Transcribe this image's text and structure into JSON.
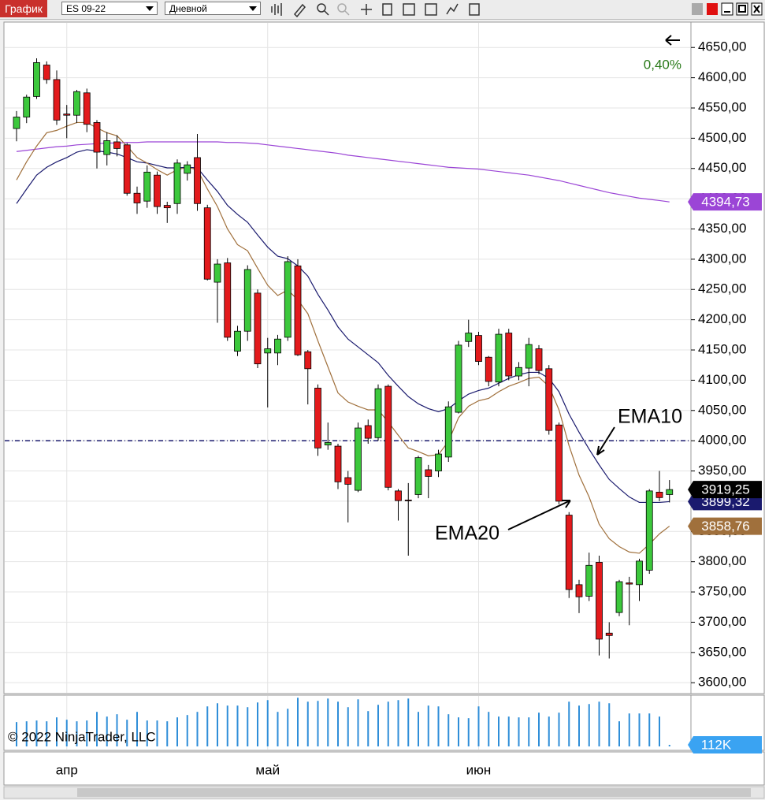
{
  "toolbar": {
    "tab": "График",
    "instrument": "ES 09-22",
    "period": "Дневной"
  },
  "copyright": "© 2022 NinjaTrader, LLC",
  "chart_data": [
    {
      "type": "candlestick",
      "categories": [
        null,
        null,
        null,
        null,
        null,
        null,
        null,
        null,
        null,
        null,
        null,
        null,
        null,
        null,
        null,
        null,
        null,
        null,
        null,
        null,
        null,
        null,
        null,
        null,
        null,
        null,
        null,
        null,
        null,
        null,
        null,
        null,
        null,
        null,
        null,
        null,
        null,
        null,
        null,
        null,
        null,
        null,
        null,
        null,
        null,
        null,
        null,
        null,
        null,
        null,
        null,
        null,
        null,
        null,
        null,
        null,
        null,
        null,
        null,
        null,
        null,
        null,
        null,
        null,
        null,
        null
      ],
      "open": [
        4516,
        4535,
        4569,
        4621,
        4597,
        4540,
        4538,
        4575,
        4526,
        4473,
        4494,
        4489,
        4409,
        4396,
        4439,
        4389,
        4392,
        4442,
        4468,
        4385,
        4262,
        4294,
        4148,
        4181,
        4244,
        4145,
        4145,
        4171,
        4289,
        4147,
        4087,
        3993,
        3991,
        3939,
        3918,
        4025,
        4005,
        4090,
        3917,
        3902,
        3911,
        3952,
        3950,
        3973,
        4047,
        4164,
        4174,
        4138,
        4097,
        4178,
        4107,
        4120,
        4152,
        4119,
        4026,
        3877,
        3762,
        3743,
        3799,
        3682,
        3716,
        3765,
        3762,
        3786,
        3915,
        3911
      ],
      "high": [
        4545,
        4572,
        4632,
        4627,
        4612,
        4555,
        4580,
        4582,
        4530,
        4510,
        4505,
        4492,
        4420,
        4455,
        4445,
        4395,
        4465,
        4462,
        4507,
        4390,
        4300,
        4302,
        4190,
        4290,
        4250,
        4170,
        4175,
        4305,
        4300,
        4150,
        4093,
        4030,
        3995,
        3950,
        4030,
        4035,
        4093,
        4093,
        3920,
        3930,
        3975,
        3960,
        3985,
        4065,
        4165,
        4200,
        4180,
        4140,
        4185,
        4185,
        4130,
        4170,
        4158,
        4125,
        4030,
        3882,
        3770,
        3815,
        3810,
        3700,
        3770,
        3775,
        3805,
        3920,
        3950,
        3935
      ],
      "low": [
        4495,
        4525,
        4565,
        4590,
        4522,
        4500,
        4525,
        4510,
        4450,
        4455,
        4470,
        4405,
        4375,
        4385,
        4375,
        4360,
        4375,
        4430,
        4380,
        4265,
        4195,
        4165,
        4140,
        4165,
        4120,
        4055,
        4125,
        4165,
        4140,
        4060,
        3975,
        3985,
        3920,
        3865,
        3915,
        3995,
        4000,
        3918,
        3868,
        3810,
        3905,
        3905,
        3940,
        3965,
        4045,
        4155,
        4125,
        4090,
        4090,
        4100,
        4100,
        4090,
        4110,
        4010,
        3895,
        3740,
        3715,
        3735,
        3645,
        3640,
        3710,
        3695,
        3735,
        3780,
        3900,
        3898
      ],
      "close": [
        4535,
        4568,
        4625,
        4597,
        4530,
        4538,
        4577,
        4523,
        4477,
        4496,
        4483,
        4409,
        4393,
        4444,
        4387,
        4385,
        4459,
        4456,
        4392,
        4267,
        4292,
        4171,
        4181,
        4283,
        4127,
        4152,
        4168,
        4296,
        4142,
        4119,
        3988,
        3997,
        3932,
        3928,
        4021,
        4004,
        4086,
        3923,
        3901,
        3901,
        3972,
        3941,
        3978,
        4056,
        4158,
        4178,
        4131,
        4098,
        4176,
        4107,
        4121,
        4159,
        4116,
        4017,
        3900,
        3754,
        3742,
        3794,
        3672,
        3678,
        3767,
        3763,
        3801,
        3917,
        3906,
        3919.25
      ],
      "last_label": "3919,25",
      "up_color": "#3cc83c",
      "down_color": "#e31a1c",
      "series": [
        {
          "color": "#9b45d6",
          "last_label": "4394,73",
          "values": [
            4478,
            4480,
            4482,
            4484,
            4486,
            4487,
            4489,
            4490,
            4491,
            4492,
            4492,
            4493,
            4493,
            4494,
            4494,
            4494,
            4494,
            4494,
            4494,
            4494,
            4494,
            4493,
            4493,
            4492,
            4491,
            4489,
            4487,
            4485,
            4483,
            4481,
            4479,
            4477,
            4475,
            4472,
            4470,
            4468,
            4466,
            4464,
            4462,
            4460,
            4458,
            4456,
            4454,
            4452,
            4451,
            4450,
            4449,
            4447,
            4445,
            4443,
            4441,
            4439,
            4436,
            4433,
            4430,
            4426,
            4422,
            4418,
            4414,
            4410,
            4407,
            4404,
            4401,
            4399,
            4397,
            4394.73
          ]
        },
        {
          "color": "#1a1a6e",
          "last_label": "3899,32",
          "values": [
            4392,
            4416,
            4439,
            4452,
            4461,
            4468,
            4477,
            4481,
            4479,
            4477,
            4474,
            4468,
            4461,
            4459,
            4455,
            4451,
            4451,
            4452,
            4451,
            4431,
            4412,
            4389,
            4374,
            4361,
            4340,
            4320,
            4305,
            4301,
            4289,
            4272,
            4242,
            4216,
            4188,
            4168,
            4155,
            4142,
            4129,
            4108,
            4090,
            4073,
            4061,
            4053,
            4048,
            4053,
            4066,
            4077,
            4083,
            4087,
            4095,
            4103,
            4109,
            4113,
            4113,
            4103,
            4081,
            4044,
            4014,
            3986,
            3960,
            3936,
            3921,
            3907,
            3898,
            3898,
            3898,
            3899.32
          ]
        },
        {
          "color": "#a0703c",
          "last_label": "3858,76",
          "values": [
            4431,
            4461,
            4487,
            4509,
            4513,
            4520,
            4526,
            4526,
            4517,
            4509,
            4504,
            4487,
            4468,
            4459,
            4448,
            4439,
            4448,
            4452,
            4448,
            4416,
            4387,
            4350,
            4324,
            4314,
            4285,
            4257,
            4240,
            4249,
            4233,
            4210,
            4165,
            4122,
            4079,
            4064,
            4057,
            4051,
            4051,
            4031,
            4009,
            3988,
            3982,
            3975,
            3977,
            3999,
            4038,
            4057,
            4066,
            4070,
            4081,
            4090,
            4096,
            4103,
            4105,
            4090,
            4051,
            3992,
            3943,
            3907,
            3862,
            3838,
            3825,
            3816,
            3814,
            3829,
            3846,
            3858.76
          ]
        }
      ],
      "ylim": [
        3582,
        4692
      ],
      "yticks": [
        {
          "value": 3600,
          "label": "3600,00"
        },
        {
          "value": 3650,
          "label": "3650,00"
        },
        {
          "value": 3700,
          "label": "3700,00"
        },
        {
          "value": 3750,
          "label": "3750,00"
        },
        {
          "value": 3800,
          "label": "3800,00"
        },
        {
          "value": 3850,
          "label": "3850,00"
        },
        {
          "value": 3900,
          "label": "3900,00"
        },
        {
          "value": 3950,
          "label": "3950,00"
        },
        {
          "value": 4000,
          "label": "4000,00"
        },
        {
          "value": 4050,
          "label": "4050,00"
        },
        {
          "value": 4100,
          "label": "4100,00"
        },
        {
          "value": 4150,
          "label": "4150,00"
        },
        {
          "value": 4200,
          "label": "4200,00"
        },
        {
          "value": 4250,
          "label": "4250,00"
        },
        {
          "value": 4300,
          "label": "4300,00"
        },
        {
          "value": 4350,
          "label": "4350,00"
        },
        {
          "value": 4400,
          "label": "4400,00"
        },
        {
          "value": 4450,
          "label": "4450,00"
        },
        {
          "value": 4500,
          "label": "4500,00"
        },
        {
          "value": 4550,
          "label": "4550,00"
        },
        {
          "value": 4600,
          "label": "4600,00"
        },
        {
          "value": 4650,
          "label": "4650,00"
        }
      ],
      "xticks": [
        {
          "value": 5,
          "label": "апр"
        },
        {
          "value": 25,
          "label": "май"
        },
        {
          "value": 46,
          "label": "июн"
        }
      ],
      "grid": true,
      "hlines": [
        {
          "value": 4000,
          "color": "#1a1a6e"
        }
      ],
      "annotations": [
        "0,40%",
        "EMA10",
        "EMA20"
      ]
    },
    {
      "type": "bar",
      "color": "#2f8ed8",
      "last_label": "112K",
      "ylim": [
        0,
        3600000
      ],
      "values": [
        1736000,
        1792000,
        1848000,
        1792000,
        2072000,
        1904000,
        1792000,
        1848000,
        2464000,
        2128000,
        2296000,
        1904000,
        2464000,
        1848000,
        1848000,
        1792000,
        2072000,
        2240000,
        2464000,
        2856000,
        3080000,
        2912000,
        2912000,
        2800000,
        3136000,
        3304000,
        2464000,
        2688000,
        3472000,
        3192000,
        3248000,
        3416000,
        3192000,
        2800000,
        3360000,
        2520000,
        2968000,
        3192000,
        3304000,
        3416000,
        2464000,
        2912000,
        2856000,
        2296000,
        2072000,
        2016000,
        2856000,
        2464000,
        2128000,
        2128000,
        2072000,
        2072000,
        2408000,
        2128000,
        2408000,
        3192000,
        2912000,
        3024000,
        3192000,
        3080000,
        1792000,
        2352000,
        2352000,
        2352000,
        2128000,
        112000
      ]
    }
  ]
}
